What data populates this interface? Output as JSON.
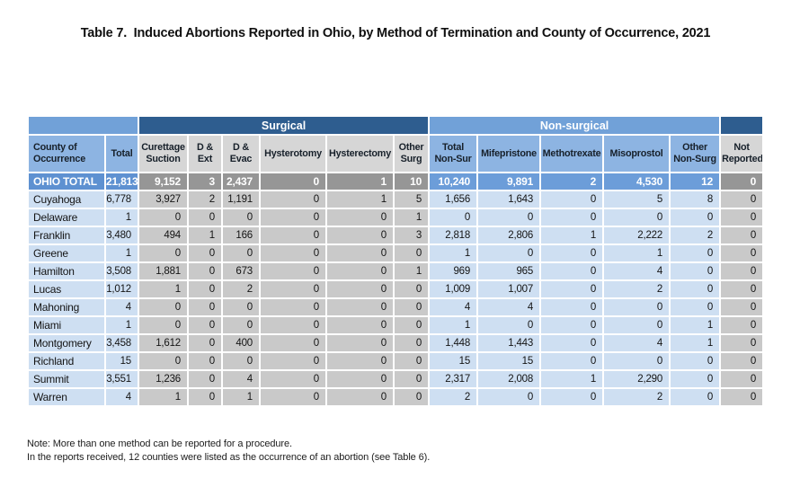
{
  "page": {
    "title": "Table 7.  Induced Abortions Reported in Ohio, by Method of Termination and County of Occurrence, 2021",
    "notes": [
      "Note: More than one method can be reported for a procedure.",
      "In the reports received, 12 counties were listed as the occurrence of an abortion (see Table 6)."
    ]
  },
  "table": {
    "groups": {
      "surgical": "Surgical",
      "nonsurgical": "Non-surgical"
    },
    "columns": [
      "County of Occurrence",
      "Total",
      "Curettage Suction",
      "D & Ext",
      "D & Evac",
      "Hysterotomy",
      "Hysterectomy",
      "Other Surg",
      "Total Non-Sur",
      "Mifepristone",
      "Methotrexate",
      "Misoprostol",
      "Other Non-Surg",
      "Not Reported"
    ],
    "rows": [
      [
        "OHIO TOTAL",
        "21,813",
        "9,152",
        "3",
        "2,437",
        "0",
        "1",
        "10",
        "10,240",
        "9,891",
        "2",
        "4,530",
        "12",
        "0"
      ],
      [
        "Cuyahoga",
        "6,778",
        "3,927",
        "2",
        "1,191",
        "0",
        "1",
        "5",
        "1,656",
        "1,643",
        "0",
        "5",
        "8",
        "0"
      ],
      [
        "Delaware",
        "1",
        "0",
        "0",
        "0",
        "0",
        "0",
        "1",
        "0",
        "0",
        "0",
        "0",
        "0",
        "0"
      ],
      [
        "Franklin",
        "3,480",
        "494",
        "1",
        "166",
        "0",
        "0",
        "3",
        "2,818",
        "2,806",
        "1",
        "2,222",
        "2",
        "0"
      ],
      [
        "Greene",
        "1",
        "0",
        "0",
        "0",
        "0",
        "0",
        "0",
        "1",
        "0",
        "0",
        "1",
        "0",
        "0"
      ],
      [
        "Hamilton",
        "3,508",
        "1,881",
        "0",
        "673",
        "0",
        "0",
        "1",
        "969",
        "965",
        "0",
        "4",
        "0",
        "0"
      ],
      [
        "Lucas",
        "1,012",
        "1",
        "0",
        "2",
        "0",
        "0",
        "0",
        "1,009",
        "1,007",
        "0",
        "2",
        "0",
        "0"
      ],
      [
        "Mahoning",
        "4",
        "0",
        "0",
        "0",
        "0",
        "0",
        "0",
        "4",
        "4",
        "0",
        "0",
        "0",
        "0"
      ],
      [
        "Miami",
        "1",
        "0",
        "0",
        "0",
        "0",
        "0",
        "0",
        "1",
        "0",
        "0",
        "0",
        "1",
        "0"
      ],
      [
        "Montgomery",
        "3,458",
        "1,612",
        "0",
        "400",
        "0",
        "0",
        "0",
        "1,448",
        "1,443",
        "0",
        "4",
        "1",
        "0"
      ],
      [
        "Richland",
        "15",
        "0",
        "0",
        "0",
        "0",
        "0",
        "0",
        "15",
        "15",
        "0",
        "0",
        "0",
        "0"
      ],
      [
        "Summit",
        "3,551",
        "1,236",
        "0",
        "4",
        "0",
        "0",
        "0",
        "2,317",
        "2,008",
        "1",
        "2,290",
        "0",
        "0"
      ],
      [
        "Warren",
        "4",
        "1",
        "0",
        "1",
        "0",
        "0",
        "0",
        "2",
        "0",
        "0",
        "2",
        "0",
        "0"
      ]
    ]
  },
  "colors": {
    "dark_blue": "#2E5D8F",
    "medium_blue": "#71A1D8",
    "header_blue": "#8DB4E2",
    "header_gray": "#D6D6D6",
    "row_blue": "#CEDFF2",
    "row_gray": "#C9C9C9",
    "total_blue": "#5E91D1",
    "total_nonsurg_blue": "#6C9DD9",
    "total_gray": "#969696"
  }
}
